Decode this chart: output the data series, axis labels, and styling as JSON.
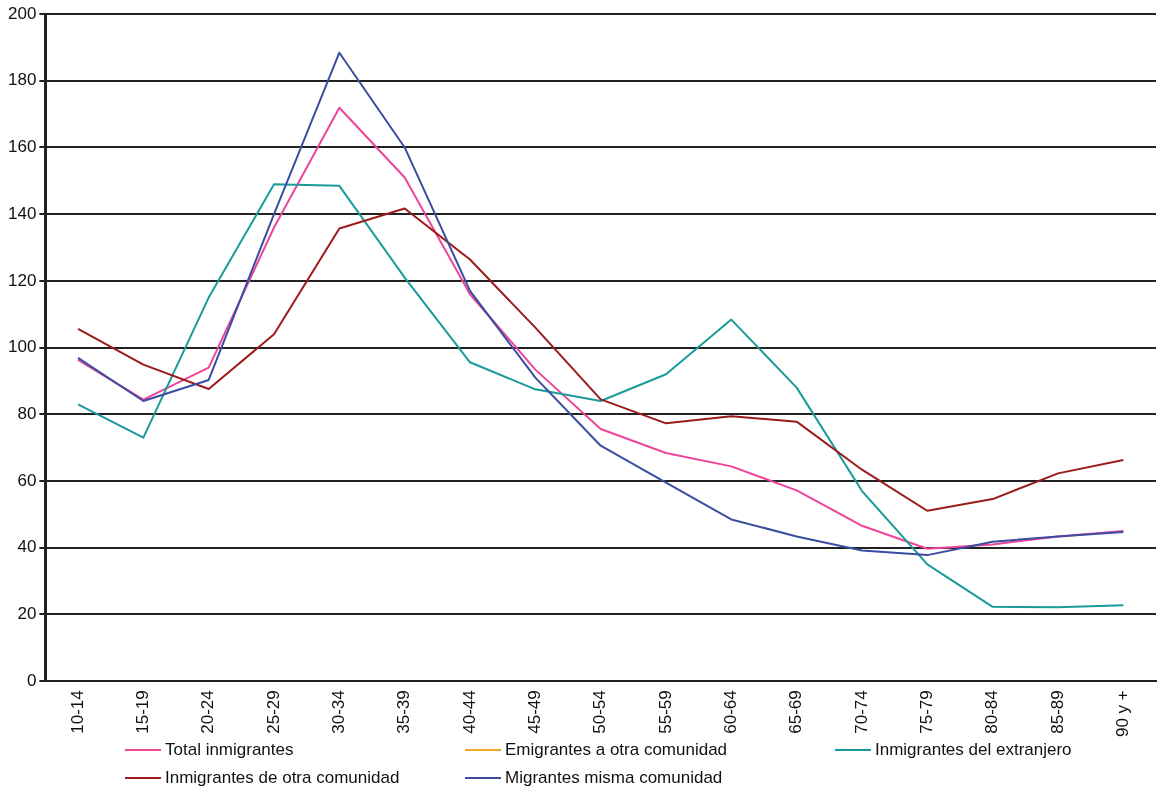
{
  "chart_data": {
    "type": "line",
    "categories": [
      "10-14",
      "15-19",
      "20-24",
      "25-29",
      "30-34",
      "35-39",
      "40-44",
      "45-49",
      "50-54",
      "55-59",
      "60-64",
      "65-69",
      "70-74",
      "75-79",
      "80-84",
      "85-89",
      "90 y +"
    ],
    "series": [
      {
        "name": "Total inmigrantes",
        "color": "#ee4499",
        "values": [
          96.3,
          84.4,
          94,
          136,
          171.9,
          151,
          116,
          93.4,
          75.6,
          68.4,
          64.4,
          57.2,
          46.6,
          39.7,
          41,
          43.4,
          45
        ]
      },
      {
        "name": "Emigrantes a otra comunidad",
        "color": "#f5a623",
        "values": [
          null,
          null,
          null,
          null,
          null,
          null,
          null,
          null,
          null,
          null,
          null,
          null,
          null,
          null,
          null,
          null,
          null
        ]
      },
      {
        "name": "Inmigrantes del extranjero",
        "color": "#1a9a9a",
        "values": [
          83,
          73,
          115,
          149,
          148.5,
          121,
          95.6,
          87.5,
          84,
          92,
          108.4,
          88,
          57,
          35,
          22.3,
          22.2,
          22.8
        ]
      },
      {
        "name": "Inmigrantes de otra comunidad",
        "color": "#9b1b1b",
        "values": [
          105.6,
          94.9,
          87.6,
          104,
          135.7,
          141.7,
          126.4,
          106,
          84.5,
          77.3,
          79.4,
          77.8,
          63.4,
          51.1,
          54.6,
          62.3,
          66.3
        ]
      },
      {
        "name": "Migrantes misma comunidad",
        "color": "#3a4da0",
        "values": [
          96.9,
          84,
          90.3,
          140,
          188.4,
          160,
          117,
          91,
          70.6,
          59.5,
          48.5,
          43.4,
          39.2,
          37.8,
          41.8,
          43.4,
          44.7
        ]
      }
    ],
    "ylim": [
      0,
      200
    ],
    "yticks": [
      0,
      20,
      40,
      60,
      80,
      100,
      120,
      140,
      160,
      180,
      200
    ],
    "grid": "y",
    "legend": "bottom",
    "marker": "none",
    "line_style": "solid"
  }
}
